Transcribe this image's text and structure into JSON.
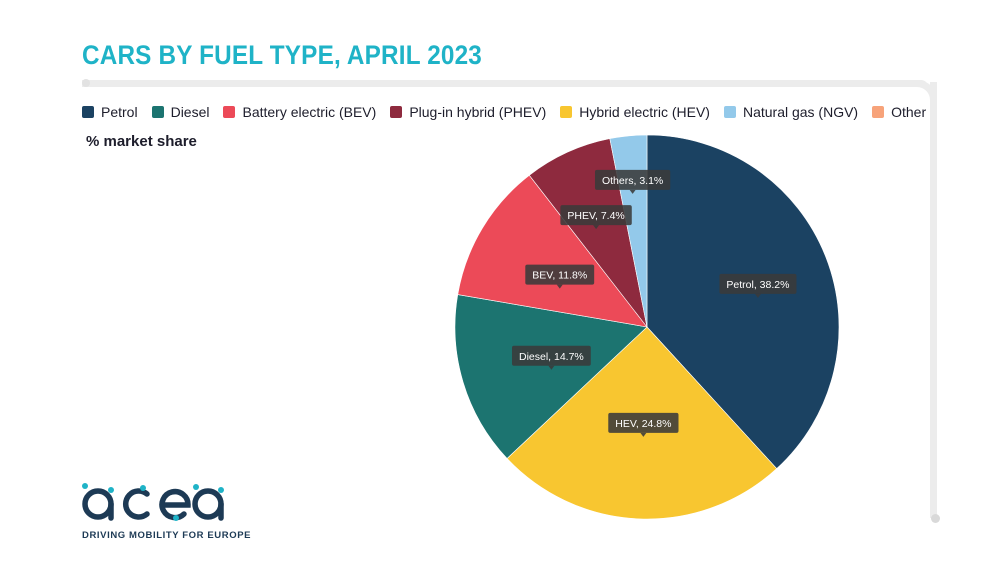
{
  "title": "CARS BY FUEL TYPE, APRIL 2023",
  "subtitle": "% market share",
  "legend": [
    {
      "label": "Petrol",
      "color": "#1b4262"
    },
    {
      "label": "Diesel",
      "color": "#1c7470"
    },
    {
      "label": "Battery electric (BEV)",
      "color": "#ec4a58"
    },
    {
      "label": "Plug-in hybrid (PHEV)",
      "color": "#8e2a3e"
    },
    {
      "label": "Hybrid electric (HEV)",
      "color": "#f8c630"
    },
    {
      "label": "Natural gas (NGV)",
      "color": "#93c9ea"
    },
    {
      "label": "Other",
      "color": "#f7a37a"
    }
  ],
  "chart_data": {
    "type": "pie",
    "title": "CARS BY FUEL TYPE, APRIL 2023",
    "subtitle": "% market share",
    "slices": [
      {
        "name": "Petrol",
        "label": "Petrol, 38.2%",
        "value": 38.2,
        "color": "#1b4262"
      },
      {
        "name": "HEV",
        "label": "HEV, 24.8%",
        "value": 24.8,
        "color": "#f8c630"
      },
      {
        "name": "Diesel",
        "label": "Diesel, 14.7%",
        "value": 14.7,
        "color": "#1c7470"
      },
      {
        "name": "BEV",
        "label": "BEV, 11.8%",
        "value": 11.8,
        "color": "#ec4a58"
      },
      {
        "name": "PHEV",
        "label": "PHEV, 7.4%",
        "value": 7.4,
        "color": "#8e2a3e"
      },
      {
        "name": "Others",
        "label": "Others, 3.1%",
        "value": 3.1,
        "color": "#93c9ea"
      }
    ],
    "legend_position": "top"
  },
  "logo": {
    "wordmark": "acea",
    "tagline": "DRIVING MOBILITY FOR EUROPE"
  }
}
